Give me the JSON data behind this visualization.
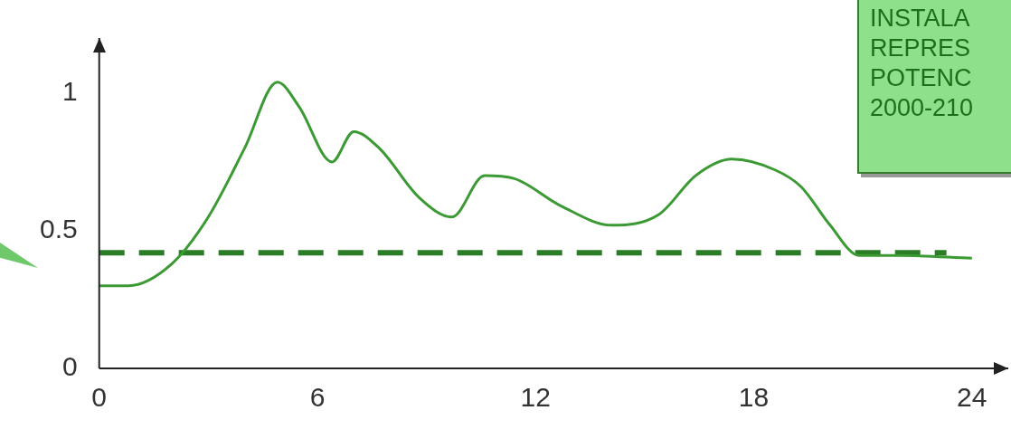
{
  "chart_data": {
    "type": "line",
    "x": [
      0,
      0.8,
      2,
      3,
      4,
      4.9,
      5.5,
      6.4,
      7,
      7.7,
      8.8,
      9.7,
      10.6,
      11.4,
      12.7,
      14.1,
      15.4,
      16.4,
      17.4,
      18.6,
      19.3,
      20.1,
      20.9,
      22,
      24
    ],
    "series": [
      {
        "color": "#3c9a34",
        "values": [
          0.3,
          0.3,
          0.38,
          0.55,
          0.8,
          1.04,
          0.95,
          0.75,
          0.86,
          0.8,
          0.62,
          0.55,
          0.7,
          0.69,
          0.59,
          0.52,
          0.56,
          0.7,
          0.76,
          0.72,
          0.66,
          0.52,
          0.41,
          0.41,
          0.4
        ]
      },
      {
        "type": "line",
        "color": "#2a7d24",
        "line_style": "dashed",
        "x": [
          0,
          23.3
        ],
        "values": [
          0.42,
          0.42
        ]
      }
    ],
    "xlim": [
      0,
      25
    ],
    "xticks": [
      0,
      6,
      12,
      18,
      24
    ],
    "ylim": [
      0,
      1.2
    ],
    "yticks": [
      0,
      0.5,
      1
    ],
    "grid": false,
    "legend": false,
    "marker": "none",
    "annotations": [
      "INSTALA",
      "REPRES",
      "POTENC",
      "2000-210"
    ]
  }
}
